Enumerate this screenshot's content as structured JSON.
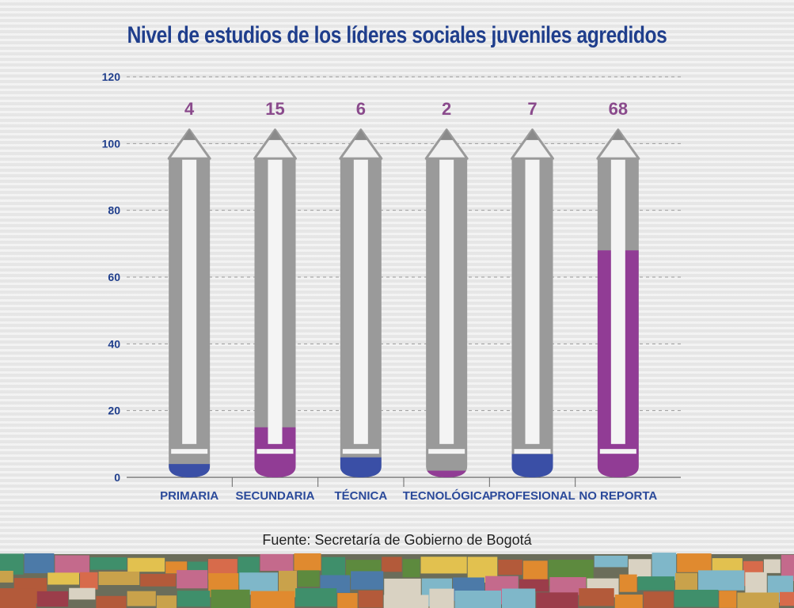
{
  "chart_data": {
    "type": "bar",
    "title": "Nivel de estudios de los líderes sociales juveniles agredidos",
    "categories": [
      "PRIMARIA",
      "SECUNDARIA",
      "TÉCNICA",
      "TECNOLÓGICA",
      "PROFESIONAL",
      "NO REPORTA"
    ],
    "values": [
      4,
      15,
      6,
      2,
      7,
      68
    ],
    "value_labels": [
      "4",
      "15",
      "6",
      "2",
      "7",
      "68"
    ],
    "ylim": [
      0,
      120
    ],
    "yticks": [
      0,
      20,
      40,
      60,
      80,
      100,
      120
    ],
    "grid": true,
    "style": "pencil",
    "colors": {
      "high": "#913c95",
      "low": "#3a4fa6",
      "pencil": "#9a9a9a",
      "title": "#1f3e8c",
      "value_label": "#8a4a8c",
      "category_label": "#2b4a9a"
    },
    "bar_colors": [
      "#3a4fa6",
      "#913c95",
      "#3a4fa6",
      "#913c95",
      "#3a4fa6",
      "#913c95"
    ]
  },
  "source": "Fuente: Secretaría de Gobierno de Bogotá"
}
